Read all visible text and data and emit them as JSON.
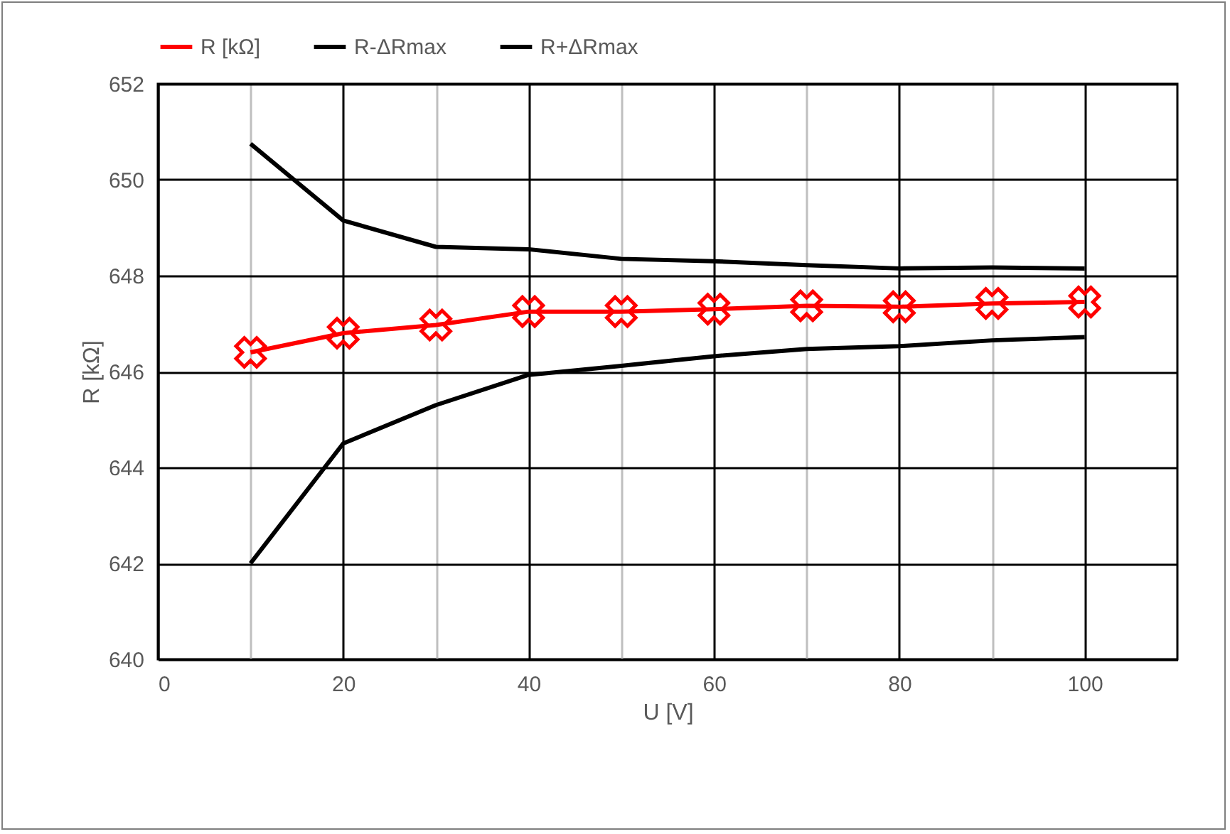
{
  "chart_data": {
    "type": "line",
    "xlabel": "U [V]",
    "ylabel": "R [kΩ]",
    "x": [
      10,
      20,
      30,
      40,
      50,
      60,
      70,
      80,
      90,
      100
    ],
    "series": [
      {
        "name": "R [kΩ]",
        "color": "#ff0000",
        "marker": "cross",
        "values": [
          646.4,
          646.8,
          646.97,
          647.25,
          647.25,
          647.3,
          647.37,
          647.35,
          647.42,
          647.45
        ]
      },
      {
        "name": "R-ΔRmax",
        "color": "#000000",
        "marker": "none",
        "values": [
          642.0,
          644.5,
          645.3,
          645.93,
          646.12,
          646.32,
          646.47,
          646.53,
          646.65,
          646.72
        ]
      },
      {
        "name": "R+ΔRmax",
        "color": "#000000",
        "marker": "none",
        "values": [
          650.75,
          649.15,
          648.6,
          648.55,
          648.35,
          648.3,
          648.22,
          648.15,
          648.17,
          648.15
        ]
      }
    ],
    "xlim": [
      0,
      110
    ],
    "xticks": [
      0,
      20,
      40,
      60,
      80,
      100
    ],
    "ylim": [
      640,
      652
    ],
    "yticks": [
      640,
      642,
      644,
      646,
      648,
      650,
      652
    ],
    "grid": true,
    "legend": "top",
    "line_style": "solid"
  }
}
